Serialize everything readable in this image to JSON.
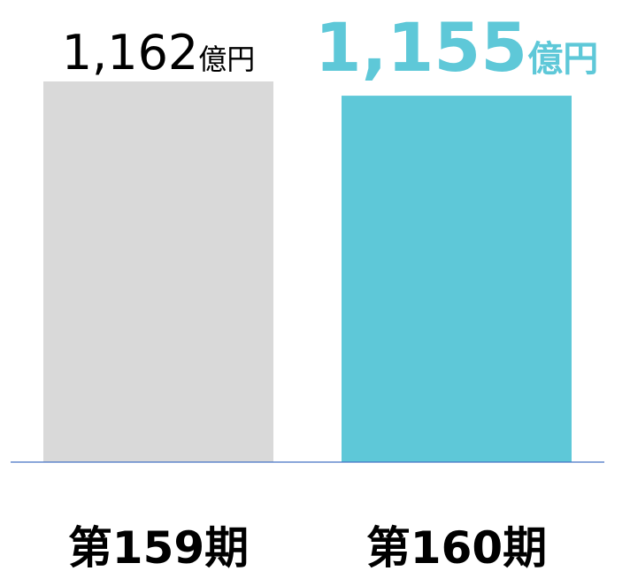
{
  "chart_data": {
    "type": "bar",
    "categories": [
      "第159期",
      "第160期"
    ],
    "values": [
      1162,
      1155
    ],
    "value_labels": [
      "1,162",
      "1,155"
    ],
    "unit": "億円",
    "colors": [
      "#d9d9d9",
      "#5ec8d8"
    ],
    "axis_color": "#4472c4",
    "ylim": [
      975,
      1162
    ]
  }
}
